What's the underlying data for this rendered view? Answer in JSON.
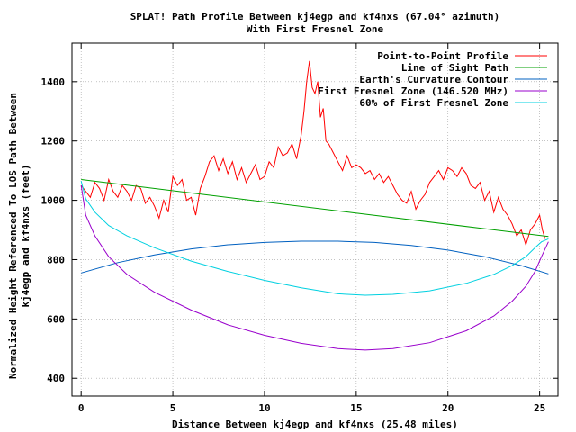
{
  "chart_data": {
    "type": "line",
    "title": "SPLAT! Path Profile Between kj4egp and kf4nxs (67.04° azimuth)",
    "subtitle": "With First Fresnel Zone",
    "xlabel": "Distance Between kj4egp and kf4nxs (25.48 miles)",
    "ylabel_line1": "Normalized Height Referenced To LOS Path Between",
    "ylabel_line2": "kj4egp and kf4nxs (feet)",
    "xlim": [
      -0.5,
      26
    ],
    "ylim": [
      340,
      1530
    ],
    "xticks": [
      0,
      5,
      10,
      15,
      20,
      25
    ],
    "yticks": [
      400,
      600,
      800,
      1000,
      1200,
      1400
    ],
    "grid": true,
    "legend_position": "top-right",
    "series": [
      {
        "name": "Point-to-Point Profile",
        "color": "#ff0000",
        "x": [
          0,
          0.25,
          0.5,
          0.75,
          1.0,
          1.25,
          1.5,
          1.75,
          2.0,
          2.25,
          2.5,
          2.75,
          3.0,
          3.25,
          3.5,
          3.75,
          4.0,
          4.25,
          4.5,
          4.75,
          5.0,
          5.25,
          5.5,
          5.75,
          6.0,
          6.25,
          6.5,
          6.75,
          7.0,
          7.25,
          7.5,
          7.75,
          8.0,
          8.25,
          8.5,
          8.75,
          9.0,
          9.25,
          9.5,
          9.75,
          10.0,
          10.25,
          10.5,
          10.75,
          11.0,
          11.25,
          11.5,
          11.75,
          12.0,
          12.15,
          12.3,
          12.45,
          12.6,
          12.75,
          12.9,
          13.05,
          13.2,
          13.35,
          13.5,
          13.75,
          14.0,
          14.25,
          14.5,
          14.75,
          15.0,
          15.25,
          15.5,
          15.75,
          16.0,
          16.25,
          16.5,
          16.75,
          17.0,
          17.25,
          17.5,
          17.75,
          18.0,
          18.25,
          18.5,
          18.75,
          19.0,
          19.25,
          19.5,
          19.75,
          20.0,
          20.25,
          20.5,
          20.75,
          21.0,
          21.25,
          21.5,
          21.75,
          22.0,
          22.25,
          22.5,
          22.75,
          23.0,
          23.25,
          23.5,
          23.75,
          24.0,
          24.25,
          24.5,
          24.75,
          25.0,
          25.15,
          25.3
        ],
        "y": [
          1050,
          1030,
          1010,
          1060,
          1040,
          1000,
          1070,
          1030,
          1010,
          1050,
          1030,
          1000,
          1050,
          1040,
          990,
          1010,
          980,
          940,
          1000,
          960,
          1080,
          1050,
          1070,
          1000,
          1010,
          950,
          1040,
          1080,
          1130,
          1150,
          1100,
          1140,
          1090,
          1130,
          1070,
          1110,
          1060,
          1090,
          1120,
          1070,
          1080,
          1130,
          1110,
          1180,
          1150,
          1160,
          1190,
          1140,
          1220,
          1300,
          1400,
          1470,
          1380,
          1360,
          1400,
          1280,
          1310,
          1200,
          1190,
          1160,
          1130,
          1100,
          1150,
          1110,
          1120,
          1110,
          1090,
          1100,
          1070,
          1090,
          1060,
          1080,
          1050,
          1020,
          1000,
          990,
          1030,
          970,
          1000,
          1020,
          1060,
          1080,
          1100,
          1070,
          1110,
          1100,
          1080,
          1110,
          1090,
          1050,
          1040,
          1060,
          1000,
          1030,
          960,
          1010,
          970,
          950,
          920,
          880,
          900,
          850,
          900,
          920,
          950,
          900,
          870
        ]
      },
      {
        "name": "Line of Sight Path",
        "color": "#00a000",
        "x": [
          0,
          25.48
        ],
        "y": [
          1070,
          878
        ]
      },
      {
        "name": "Earth's Curvature Contour",
        "color": "#0060c0",
        "x": [
          0,
          2,
          4,
          6,
          8,
          10,
          12,
          14,
          16,
          18,
          20,
          22,
          24,
          25.48
        ],
        "y": [
          755,
          790,
          816,
          836,
          850,
          858,
          862,
          862,
          858,
          848,
          832,
          810,
          780,
          752
        ]
      },
      {
        "name": "First Fresnel Zone (146.520 MHz)",
        "color": "#9900cc",
        "x": [
          0,
          0.25,
          0.75,
          1.5,
          2.5,
          4,
          6,
          8,
          10,
          12,
          14,
          15.5,
          17,
          19,
          21,
          22.5,
          23.5,
          24.25,
          24.75,
          25.1,
          25.48
        ],
        "y": [
          1050,
          950,
          880,
          810,
          750,
          690,
          630,
          580,
          545,
          518,
          500,
          495,
          500,
          520,
          560,
          610,
          660,
          710,
          760,
          810,
          860
        ]
      },
      {
        "name": "60% of First Fresnel Zone",
        "color": "#00d0e0",
        "x": [
          0,
          0.25,
          0.75,
          1.5,
          2.5,
          4,
          6,
          8,
          10,
          12,
          14,
          15.5,
          17,
          19,
          21,
          22.5,
          23.5,
          24.25,
          24.75,
          25.1,
          25.48
        ],
        "y": [
          1065,
          1005,
          960,
          915,
          880,
          840,
          795,
          760,
          730,
          705,
          685,
          680,
          683,
          695,
          720,
          750,
          780,
          810,
          840,
          860,
          870
        ]
      }
    ]
  }
}
